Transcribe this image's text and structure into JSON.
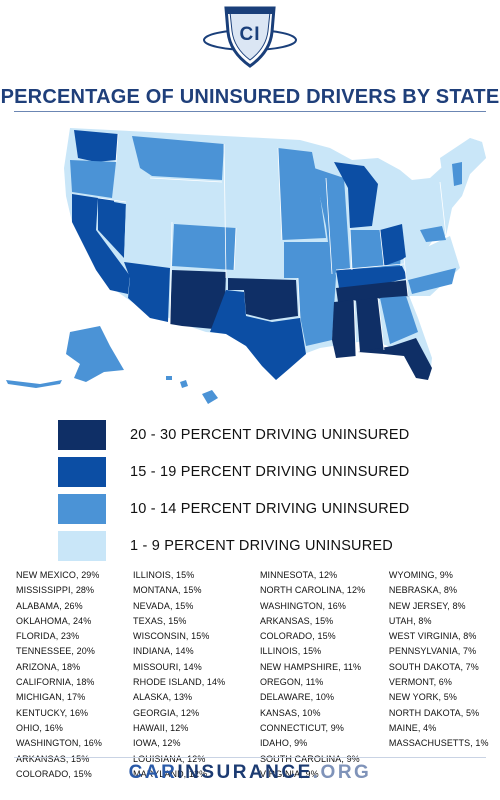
{
  "logo": {
    "text": "CI"
  },
  "title": "PERCENTAGE OF UNINSURED DRIVERS BY STATE",
  "colors": {
    "tier1": "#0f2f66",
    "tier2": "#0c4ea4",
    "tier3": "#4b93d6",
    "tier4": "#c9e6f8"
  },
  "legend": [
    {
      "label": "20 - 30 PERCENT DRIVING UNINSURED",
      "color": "#0f2f66"
    },
    {
      "label": "15 - 19 PERCENT DRIVING UNINSURED",
      "color": "#0c4ea4"
    },
    {
      "label": "10 - 14 PERCENT DRIVING UNINSURED",
      "color": "#4b93d6"
    },
    {
      "label": "1 - 9 PERCENT DRIVING UNINSURED",
      "color": "#c9e6f8"
    }
  ],
  "columns": [
    [
      "NEW MEXICO, 29%",
      "MISSISSIPPI, 28%",
      "ALABAMA, 26%",
      "OKLAHOMA, 24%",
      "FLORIDA, 23%",
      "TENNESSEE, 20%",
      "ARIZONA, 18%",
      "CALIFORNIA, 18%",
      "MICHIGAN, 17%",
      "KENTUCKY, 16%",
      "OHIO, 16%",
      "WASHINGTON, 16%",
      "ARKANSAS, 15%",
      "COLORADO, 15%"
    ],
    [
      "ILLINOIS, 15%",
      "MONTANA, 15%",
      "NEVADA, 15%",
      "TEXAS, 15%",
      "WISCONSIN, 15%",
      "INDIANA, 14%",
      "MISSOURI, 14%",
      "RHODE ISLAND, 14%",
      "ALASKA, 13%",
      "GEORGIA, 12%",
      "HAWAII, 12%",
      "IOWA, 12%",
      "LOUISIANA, 12%",
      "MARYLAND, 12%"
    ],
    [
      "MINNESOTA, 12%",
      "NORTH CAROLINA, 12%",
      "WASHINGTON, 16%",
      "ARKANSAS, 15%",
      "COLORADO, 15%",
      "ILLINOIS, 15%",
      "NEW HAMPSHIRE, 11%",
      "OREGON, 11%",
      "DELAWARE, 10%",
      "KANSAS, 10%",
      "CONNECTICUT, 9%",
      "IDAHO, 9%",
      "SOUTH CAROLINA, 9%",
      "VIRGINIA, 9%"
    ],
    [
      "WYOMING, 9%",
      "NEBRASKA, 8%",
      "NEW JERSEY, 8%",
      "UTAH, 8%",
      "WEST VIRGINIA, 8%",
      "PENNSYLVANIA, 7%",
      "SOUTH DAKOTA, 7%",
      "VERMONT, 6%",
      "NEW YORK, 5%",
      "NORTH DAKOTA, 5%",
      "MAINE, 4%",
      "MASSACHUSETTS, 1%"
    ]
  ],
  "footer": {
    "part1": "CAR",
    "part2": "INSURANCE",
    "part3": ".ORG"
  }
}
